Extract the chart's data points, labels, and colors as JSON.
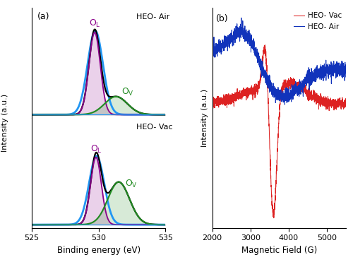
{
  "panel_a": {
    "x_range": [
      525,
      535
    ],
    "xlabel": "Binding energy (eV)",
    "ylabel": "Intensity (a.u.)",
    "label_a": "(a)",
    "top_label": "HEO- Air",
    "bottom_label": "HEO- Vac",
    "peak_OL_air": 529.7,
    "peak_OV_air": 531.3,
    "peak_OL_vac": 529.8,
    "peak_OV_vac": 531.5,
    "fwhm_OL_air": 1.0,
    "fwhm_OV_air": 2.0,
    "amp_OL_air": 1.0,
    "amp_OV_air": 0.22,
    "fwhm_OL_vac": 0.95,
    "fwhm_OV_vac": 1.9,
    "amp_OL_vac": 0.82,
    "amp_OV_vac": 0.52,
    "color_envelope": "#2196f3",
    "color_OL": "#8b008b",
    "color_OV": "#228b22",
    "color_sum": "#000000",
    "color_baseline": "#2196f3"
  },
  "panel_b": {
    "xlabel": "Magnetic Field (G)",
    "ylabel": "Intensity (a.u.)",
    "label_b": "(b)",
    "legend_vac": "HEO- Vac",
    "legend_air": "HEO- Air",
    "color_vac": "#dd2222",
    "color_air": "#1133bb",
    "x_min": 2000,
    "x_max": 5500,
    "x_ticks": [
      2000,
      3000,
      4000,
      5000
    ]
  }
}
